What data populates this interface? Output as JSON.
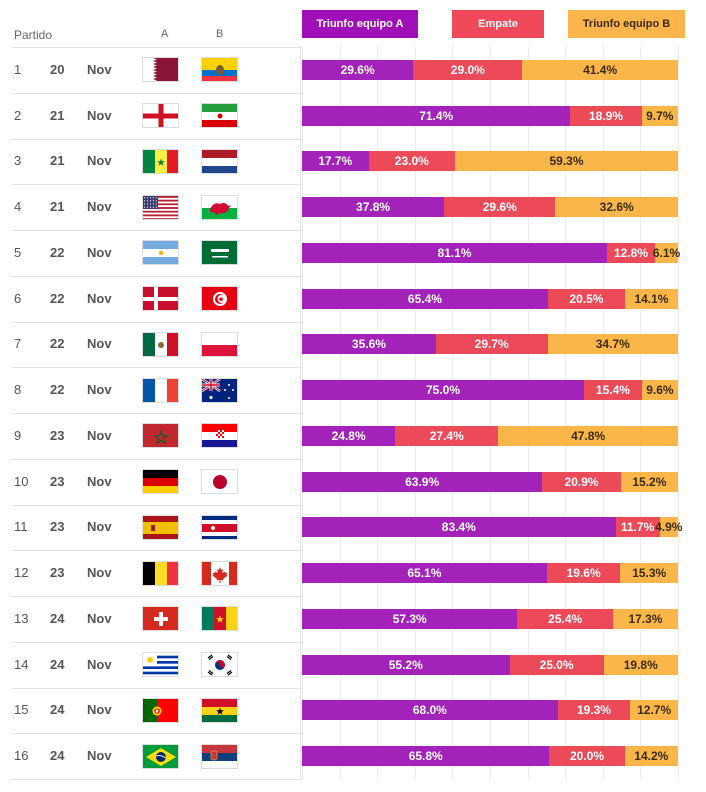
{
  "legend": {
    "team_a": "Triunfo equipo A",
    "draw": "Empate",
    "team_b": "Triunfo equipo B"
  },
  "header": {
    "match": "Partido",
    "col_a": "A",
    "col_b": "B"
  },
  "colors": {
    "team_a": "#a322b9",
    "draw": "#ec4a59",
    "team_b": "#fbb64a"
  },
  "chart_data": {
    "type": "bar",
    "stacked": true,
    "orientation": "horizontal",
    "unit": "%",
    "categories": [
      "1",
      "2",
      "3",
      "4",
      "5",
      "6",
      "7",
      "8",
      "9",
      "10",
      "11",
      "12",
      "13",
      "14",
      "15",
      "16"
    ],
    "series": [
      {
        "name": "Triunfo equipo A",
        "values": [
          29.6,
          71.4,
          17.7,
          37.8,
          81.1,
          65.4,
          35.6,
          75.0,
          24.8,
          63.9,
          83.4,
          65.1,
          57.3,
          55.2,
          68.0,
          65.8
        ],
        "labels": [
          "29.6%",
          "71.4%",
          "17.7%",
          "37.8%",
          "81.1%",
          "65.4%",
          "35.6%",
          "75.0%",
          "24.8%",
          "63.9%",
          "83.4%",
          "65.1%",
          "57.3%",
          "55.2%",
          "68.0%",
          "65.8%"
        ]
      },
      {
        "name": "Empate",
        "values": [
          29.0,
          18.9,
          23.0,
          29.6,
          12.8,
          20.5,
          29.7,
          15.4,
          27.4,
          20.9,
          11.7,
          19.6,
          25.4,
          25.0,
          19.3,
          20.0
        ],
        "labels": [
          "29.0%",
          "18.9%",
          "23.0%",
          "29.6%",
          "12.8%",
          "20.5%",
          "29.7%",
          "15.4%",
          "27.4%",
          "20.9%",
          "11.7%",
          "19.6%",
          "25.4%",
          "25.0%",
          "19.3%",
          "20.0%"
        ]
      },
      {
        "name": "Triunfo equipo B",
        "values": [
          41.4,
          9.7,
          59.3,
          32.6,
          6.1,
          14.1,
          34.7,
          9.6,
          47.8,
          15.2,
          4.9,
          15.3,
          17.3,
          19.8,
          12.7,
          14.2
        ],
        "labels": [
          "41.4%",
          "9.7%",
          "59.3%",
          "32.6%",
          "6.1%",
          "14.1%",
          "34.7%",
          "9.6%",
          "47.8%",
          "15.2%",
          "4.9%",
          "15.3%",
          "17.3%",
          "19.8%",
          "12.7%",
          "14.2%"
        ]
      }
    ],
    "xlim": [
      0,
      100
    ]
  },
  "matches": [
    {
      "num": "1",
      "day": "20",
      "month": "Nov",
      "flag_a": "qatar-flag-icon",
      "flag_b": "ecuador-flag-icon"
    },
    {
      "num": "2",
      "day": "21",
      "month": "Nov",
      "flag_a": "england-flag-icon",
      "flag_b": "iran-flag-icon"
    },
    {
      "num": "3",
      "day": "21",
      "month": "Nov",
      "flag_a": "senegal-flag-icon",
      "flag_b": "netherlands-flag-icon"
    },
    {
      "num": "4",
      "day": "21",
      "month": "Nov",
      "flag_a": "usa-flag-icon",
      "flag_b": "wales-flag-icon"
    },
    {
      "num": "5",
      "day": "22",
      "month": "Nov",
      "flag_a": "argentina-flag-icon",
      "flag_b": "saudi-arabia-flag-icon"
    },
    {
      "num": "6",
      "day": "22",
      "month": "Nov",
      "flag_a": "denmark-flag-icon",
      "flag_b": "tunisia-flag-icon"
    },
    {
      "num": "7",
      "day": "22",
      "month": "Nov",
      "flag_a": "mexico-flag-icon",
      "flag_b": "poland-flag-icon"
    },
    {
      "num": "8",
      "day": "22",
      "month": "Nov",
      "flag_a": "france-flag-icon",
      "flag_b": "australia-flag-icon"
    },
    {
      "num": "9",
      "day": "23",
      "month": "Nov",
      "flag_a": "morocco-flag-icon",
      "flag_b": "croatia-flag-icon"
    },
    {
      "num": "10",
      "day": "23",
      "month": "Nov",
      "flag_a": "germany-flag-icon",
      "flag_b": "japan-flag-icon"
    },
    {
      "num": "11",
      "day": "23",
      "month": "Nov",
      "flag_a": "spain-flag-icon",
      "flag_b": "costa-rica-flag-icon"
    },
    {
      "num": "12",
      "day": "23",
      "month": "Nov",
      "flag_a": "belgium-flag-icon",
      "flag_b": "canada-flag-icon"
    },
    {
      "num": "13",
      "day": "24",
      "month": "Nov",
      "flag_a": "switzerland-flag-icon",
      "flag_b": "cameroon-flag-icon"
    },
    {
      "num": "14",
      "day": "24",
      "month": "Nov",
      "flag_a": "uruguay-flag-icon",
      "flag_b": "south-korea-flag-icon"
    },
    {
      "num": "15",
      "day": "24",
      "month": "Nov",
      "flag_a": "portugal-flag-icon",
      "flag_b": "ghana-flag-icon"
    },
    {
      "num": "16",
      "day": "24",
      "month": "Nov",
      "flag_a": "brazil-flag-icon",
      "flag_b": "serbia-flag-icon"
    }
  ]
}
